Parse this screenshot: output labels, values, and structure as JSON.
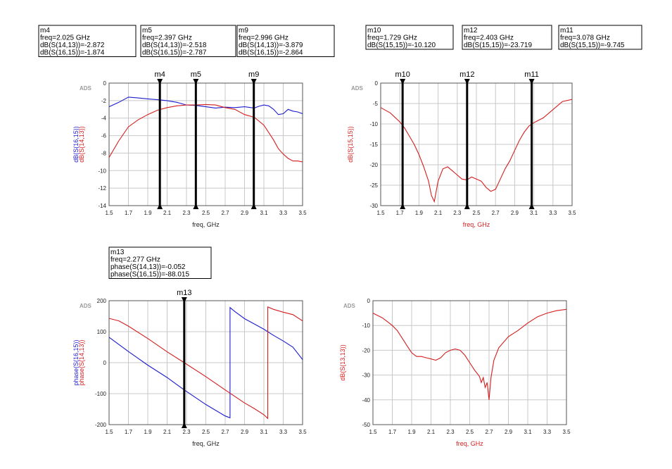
{
  "colors": {
    "red": "#d41e1e",
    "blue": "#1c1ccf",
    "grid": "#c8c8c8",
    "axis": "#555555",
    "marker": "#000000"
  },
  "chart_data": [
    {
      "id": "p1",
      "type": "line",
      "watermark": "ADS",
      "xlabel": "freq, GHz",
      "ylabel_parts": [
        {
          "text": "dB(S(16,15))",
          "color": "blue"
        },
        {
          "text": "dB(S(14,13))",
          "color": "red"
        }
      ],
      "xlim": [
        1.5,
        3.5
      ],
      "ylim": [
        -14,
        0
      ],
      "xticks": [
        1.5,
        1.7,
        1.9,
        2.1,
        2.3,
        2.5,
        2.7,
        2.9,
        3.1,
        3.3,
        3.5
      ],
      "xtick_labels": [
        "1.5",
        "1.7",
        "1.9",
        "2.1",
        "2.3",
        "2.5",
        "2.7",
        "2.9",
        "3.1",
        "3.3",
        "3.5"
      ],
      "yticks": [
        -14,
        -12,
        -10,
        -8,
        -6,
        -4,
        -2,
        0
      ],
      "ytick_labels": [
        "-14",
        "-12",
        "-10",
        "-8",
        "-6",
        "-4",
        "-2",
        "0"
      ],
      "grid": true,
      "series": [
        {
          "color": "blue",
          "x": [
            1.5,
            1.6,
            1.7,
            1.8,
            1.9,
            2.0,
            2.1,
            2.2,
            2.3,
            2.4,
            2.5,
            2.6,
            2.7,
            2.8,
            2.9,
            3.0,
            3.05,
            3.1,
            3.15,
            3.2,
            3.25,
            3.3,
            3.35,
            3.4,
            3.45,
            3.5
          ],
          "y": [
            -2.7,
            -2.2,
            -1.6,
            -1.7,
            -1.8,
            -1.9,
            -2.0,
            -2.2,
            -2.5,
            -2.55,
            -2.7,
            -2.85,
            -2.75,
            -2.8,
            -2.7,
            -2.85,
            -2.65,
            -2.5,
            -2.6,
            -3.0,
            -3.6,
            -3.5,
            -3.0,
            -3.2,
            -3.3,
            -3.5
          ]
        },
        {
          "color": "red",
          "x": [
            1.5,
            1.6,
            1.7,
            1.8,
            1.9,
            2.0,
            2.1,
            2.2,
            2.3,
            2.4,
            2.5,
            2.6,
            2.7,
            2.8,
            2.9,
            3.0,
            3.1,
            3.2,
            3.25,
            3.3,
            3.35,
            3.4,
            3.45,
            3.5
          ],
          "y": [
            -8.5,
            -6.6,
            -5.0,
            -4.2,
            -3.6,
            -3.1,
            -2.8,
            -2.6,
            -2.5,
            -2.5,
            -2.45,
            -2.5,
            -2.8,
            -3.0,
            -3.6,
            -3.9,
            -4.8,
            -6.5,
            -7.5,
            -8.1,
            -8.6,
            -8.9,
            -8.9,
            -9.0
          ]
        }
      ],
      "markers": [
        {
          "name": "m4",
          "x": 2.025,
          "lines": [
            "m4",
            "freq=2.025 GHz",
            "dB(S(14,13))=-2.872",
            "dB(S(16,15))=-1.874"
          ]
        },
        {
          "name": "m5",
          "x": 2.397,
          "lines": [
            "m5",
            "freq=2.397 GHz",
            "dB(S(14,13))=-2.518",
            "dB(S(16,15))=-2.787"
          ]
        },
        {
          "name": "m9",
          "x": 2.996,
          "lines": [
            "m9",
            "freq=2.996 GHz",
            "dB(S(14,13))=-3.879",
            "dB(S(16,15))=-2.864"
          ]
        }
      ]
    },
    {
      "id": "p2",
      "type": "line",
      "watermark": "ADS",
      "xlabel": "freq, GHz",
      "xlabel_color": "red",
      "ylabel_parts": [
        {
          "text": "dB(S(15,15))",
          "color": "red"
        }
      ],
      "xlim": [
        1.5,
        3.5
      ],
      "ylim": [
        -30,
        0
      ],
      "xticks": [
        1.5,
        1.7,
        1.9,
        2.1,
        2.3,
        2.5,
        2.7,
        2.9,
        3.1,
        3.3,
        3.5
      ],
      "xtick_labels": [
        "1.5",
        "1.7",
        "1.9",
        "2.1",
        "2.3",
        "2.5",
        "2.7",
        "2.9",
        "3.1",
        "3.3",
        "3.5"
      ],
      "yticks": [
        -30,
        -25,
        -20,
        -15,
        -10,
        -5,
        0
      ],
      "ytick_labels": [
        "-30",
        "-25",
        "-20",
        "-15",
        "-10",
        "-5",
        "0"
      ],
      "grid": true,
      "series": [
        {
          "color": "red",
          "x": [
            1.5,
            1.6,
            1.7,
            1.75,
            1.8,
            1.85,
            1.9,
            1.95,
            2.0,
            2.03,
            2.06,
            2.1,
            2.15,
            2.2,
            2.25,
            2.3,
            2.35,
            2.4,
            2.45,
            2.5,
            2.55,
            2.6,
            2.65,
            2.7,
            2.75,
            2.8,
            2.85,
            2.9,
            2.95,
            3.0,
            3.05,
            3.1,
            3.2,
            3.3,
            3.4,
            3.5
          ],
          "y": [
            -6.0,
            -7.3,
            -9.5,
            -11.0,
            -13.0,
            -15.0,
            -17.5,
            -20.5,
            -24.0,
            -27.5,
            -29.0,
            -24.0,
            -21.0,
            -20.5,
            -21.5,
            -22.5,
            -23.5,
            -23.7,
            -23.0,
            -23.5,
            -24.0,
            -25.5,
            -26.5,
            -26.0,
            -23.5,
            -21.0,
            -19.0,
            -16.5,
            -14.0,
            -12.0,
            -10.5,
            -9.7,
            -8.5,
            -6.5,
            -4.5,
            -4.0
          ]
        }
      ],
      "markers": [
        {
          "name": "m10",
          "x": 1.729,
          "lines": [
            "m10",
            "freq=1.729 GHz",
            "dB(S(15,15))=-10.120"
          ]
        },
        {
          "name": "m12",
          "x": 2.403,
          "lines": [
            "m12",
            "freq=2.403 GHz",
            "dB(S(15,15))=-23.719"
          ]
        },
        {
          "name": "m11",
          "x": 3.078,
          "lines": [
            "m11",
            "freq=3.078 GHz",
            "dB(S(15,15))=-9.745"
          ]
        }
      ]
    },
    {
      "id": "p3",
      "type": "line",
      "watermark": "ADS",
      "xlabel": "freq, GHz",
      "ylabel_parts": [
        {
          "text": "phase(S(16,15))",
          "color": "blue"
        },
        {
          "text": "phase(S(14,13))",
          "color": "red"
        }
      ],
      "xlim": [
        1.5,
        3.5
      ],
      "ylim": [
        -200,
        200
      ],
      "xticks": [
        1.5,
        1.7,
        1.9,
        2.1,
        2.3,
        2.5,
        2.7,
        2.9,
        3.1,
        3.3,
        3.5
      ],
      "xtick_labels": [
        "1.5",
        "1.7",
        "1.9",
        "2.1",
        "2.3",
        "2.5",
        "2.7",
        "2.9",
        "3.1",
        "3.3",
        "3.5"
      ],
      "yticks": [
        -200,
        -100,
        0,
        100,
        200
      ],
      "ytick_labels": [
        "-200",
        "-100",
        "0",
        "100",
        "200"
      ],
      "grid": true,
      "series": [
        {
          "color": "blue",
          "x": [
            1.5,
            1.7,
            1.9,
            2.1,
            2.277,
            2.5,
            2.7,
            2.75,
            2.75,
            2.8,
            2.9,
            3.0,
            3.1,
            3.2,
            3.3,
            3.4,
            3.5
          ],
          "y": [
            82,
            36,
            -8,
            -48,
            -88,
            -135,
            -172,
            -178,
            178,
            165,
            142,
            125,
            108,
            88,
            70,
            50,
            10
          ]
        },
        {
          "color": "red",
          "x": [
            1.5,
            1.6,
            1.7,
            1.9,
            2.1,
            2.277,
            2.5,
            2.7,
            2.9,
            3.0,
            3.1,
            3.14,
            3.14,
            3.2,
            3.3,
            3.4,
            3.5
          ],
          "y": [
            143,
            135,
            118,
            78,
            35,
            0,
            -45,
            -88,
            -130,
            -148,
            -168,
            -180,
            180,
            172,
            163,
            155,
            135
          ]
        }
      ],
      "markers": [
        {
          "name": "m13",
          "x": 2.277,
          "lines": [
            "m13",
            "freq=2.277 GHz",
            "phase(S(14,13))=-0.052",
            "phase(S(16,15))=-88.015"
          ]
        }
      ]
    },
    {
      "id": "p4",
      "type": "line",
      "watermark": "ADS",
      "xlabel": "freq, GHz",
      "xlabel_color": "red",
      "ylabel_parts": [
        {
          "text": "dB(S(13,13))",
          "color": "red"
        }
      ],
      "xlim": [
        1.5,
        3.5
      ],
      "ylim": [
        -50,
        0
      ],
      "xticks": [
        1.5,
        1.7,
        1.9,
        2.1,
        2.3,
        2.5,
        2.7,
        2.9,
        3.1,
        3.3,
        3.5
      ],
      "xtick_labels": [
        "1.5",
        "1.7",
        "1.9",
        "2.1",
        "2.3",
        "2.5",
        "2.7",
        "2.9",
        "3.1",
        "3.3",
        "3.5"
      ],
      "yticks": [
        -50,
        -40,
        -30,
        -20,
        -10,
        0
      ],
      "ytick_labels": [
        "-50",
        "-40",
        "-30",
        "-20",
        "-10",
        "0"
      ],
      "grid": true,
      "series": [
        {
          "color": "red",
          "x": [
            1.5,
            1.6,
            1.7,
            1.75,
            1.8,
            1.85,
            1.9,
            1.95,
            2.0,
            2.05,
            2.1,
            2.15,
            2.2,
            2.25,
            2.3,
            2.35,
            2.4,
            2.45,
            2.5,
            2.55,
            2.6,
            2.62,
            2.64,
            2.66,
            2.68,
            2.7,
            2.72,
            2.75,
            2.8,
            2.9,
            3.0,
            3.1,
            3.2,
            3.3,
            3.4,
            3.5
          ],
          "y": [
            -5.0,
            -7.0,
            -10.0,
            -12.0,
            -15.0,
            -18.0,
            -21.0,
            -22.5,
            -22.5,
            -23.0,
            -23.5,
            -24.0,
            -23.0,
            -21.0,
            -20.0,
            -19.5,
            -20.0,
            -22.0,
            -25.0,
            -28.0,
            -30.5,
            -33.0,
            -31.0,
            -35.0,
            -33.0,
            -40.0,
            -31.0,
            -24.0,
            -19.0,
            -14.5,
            -12.0,
            -9.0,
            -6.5,
            -5.0,
            -4.0,
            -3.5
          ]
        }
      ],
      "markers": []
    }
  ]
}
